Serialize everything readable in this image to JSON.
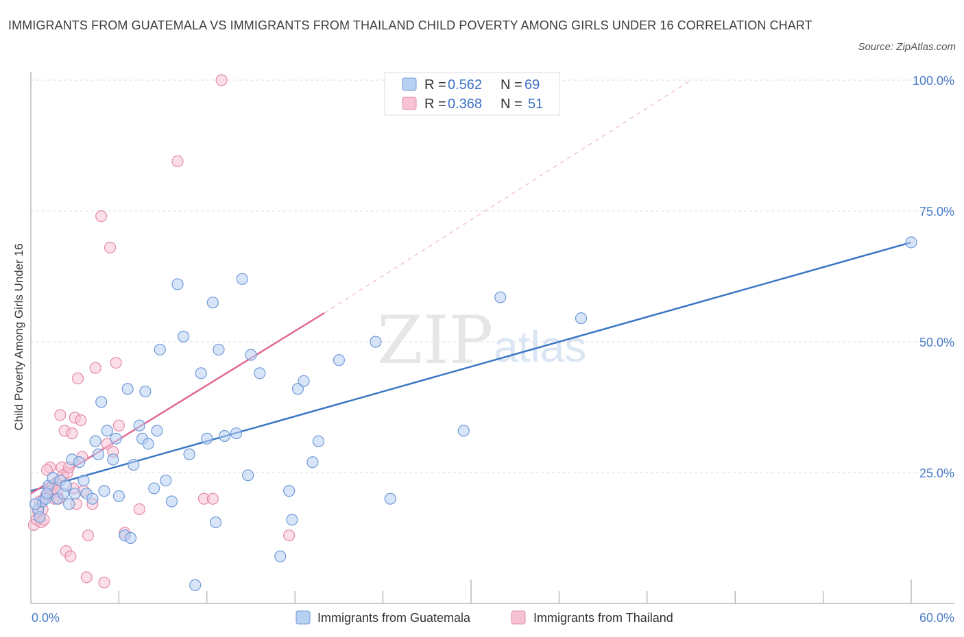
{
  "title": "IMMIGRANTS FROM GUATEMALA VS IMMIGRANTS FROM THAILAND CHILD POVERTY AMONG GIRLS UNDER 16 CORRELATION CHART",
  "source": "Source: ZipAtlas.com",
  "watermark": {
    "zip": "ZIP",
    "atlas": "atlas"
  },
  "colors": {
    "guatemala": "#3a75c4",
    "guatemala_fill": "#b8d0f2",
    "thailand": "#e06a94",
    "thailand_fill": "#f7c3d4",
    "tick_label": "#4a7cc7",
    "grid": "#dddddd"
  },
  "legend": {
    "r_label": "R =",
    "n_label": "N =",
    "guatemala": {
      "r": "0.562",
      "n": "69"
    },
    "thailand": {
      "r": "0.368",
      "n": "51"
    }
  },
  "bottom_legend": {
    "guatemala": "Immigrants from Guatemala",
    "thailand": "Immigrants from Thailand"
  },
  "chart_data": {
    "type": "scatter",
    "title": "IMMIGRANTS FROM GUATEMALA VS IMMIGRANTS FROM THAILAND CHILD POVERTY AMONG GIRLS UNDER 16 CORRELATION CHART",
    "xlabel": "",
    "ylabel": "Child Poverty Among Girls Under 16",
    "xlim": [
      0,
      60
    ],
    "ylim": [
      0,
      100
    ],
    "x_tick_labels": [
      "0.0%",
      "60.0%"
    ],
    "y_tick_labels": [
      "25.0%",
      "50.0%",
      "75.0%",
      "100.0%"
    ],
    "y_ticks": [
      25,
      50,
      75,
      100
    ],
    "grid": true,
    "legend_position": "top-center",
    "series": [
      {
        "name": "Immigrants from Guatemala",
        "points": [
          [
            0.5,
            18.0
          ],
          [
            0.8,
            19.5
          ],
          [
            1.0,
            20.0
          ],
          [
            1.2,
            22.5
          ],
          [
            1.5,
            24.0
          ],
          [
            1.8,
            20.0
          ],
          [
            2.0,
            23.5
          ],
          [
            2.2,
            21.0
          ],
          [
            2.4,
            22.5
          ],
          [
            2.6,
            19.0
          ],
          [
            2.8,
            27.5
          ],
          [
            3.0,
            21.0
          ],
          [
            3.3,
            27.0
          ],
          [
            3.6,
            23.5
          ],
          [
            3.8,
            21.0
          ],
          [
            4.2,
            20.0
          ],
          [
            4.4,
            31.0
          ],
          [
            4.6,
            28.5
          ],
          [
            4.8,
            38.5
          ],
          [
            5.0,
            21.5
          ],
          [
            5.2,
            33.0
          ],
          [
            5.6,
            27.5
          ],
          [
            5.8,
            31.5
          ],
          [
            6.0,
            20.5
          ],
          [
            6.4,
            13.0
          ],
          [
            6.6,
            41.0
          ],
          [
            6.8,
            12.5
          ],
          [
            7.0,
            26.5
          ],
          [
            7.4,
            34.0
          ],
          [
            7.6,
            31.5
          ],
          [
            7.8,
            40.5
          ],
          [
            8.0,
            30.5
          ],
          [
            8.4,
            22.0
          ],
          [
            8.6,
            33.0
          ],
          [
            8.8,
            48.5
          ],
          [
            9.2,
            23.5
          ],
          [
            9.6,
            19.5
          ],
          [
            10.0,
            61.0
          ],
          [
            10.4,
            51.0
          ],
          [
            10.8,
            28.5
          ],
          [
            11.2,
            3.5
          ],
          [
            11.6,
            44.0
          ],
          [
            12.0,
            31.5
          ],
          [
            12.4,
            57.5
          ],
          [
            12.6,
            15.5
          ],
          [
            12.8,
            48.5
          ],
          [
            13.2,
            32.0
          ],
          [
            14.0,
            32.5
          ],
          [
            14.4,
            62.0
          ],
          [
            14.8,
            24.5
          ],
          [
            15.0,
            47.5
          ],
          [
            15.6,
            44.0
          ],
          [
            17.0,
            9.0
          ],
          [
            17.6,
            21.5
          ],
          [
            17.8,
            16.0
          ],
          [
            18.2,
            41.0
          ],
          [
            18.6,
            42.5
          ],
          [
            19.2,
            27.0
          ],
          [
            19.6,
            31.0
          ],
          [
            21.0,
            46.5
          ],
          [
            23.5,
            50.0
          ],
          [
            24.5,
            20.0
          ],
          [
            29.5,
            33.0
          ],
          [
            32.0,
            58.5
          ],
          [
            37.5,
            54.5
          ],
          [
            60.0,
            69.0
          ],
          [
            0.3,
            19.0
          ],
          [
            0.6,
            16.5
          ],
          [
            1.1,
            21.0
          ]
        ],
        "trend": {
          "x": [
            0,
            60
          ],
          "y": [
            21.5,
            69.0
          ]
        }
      },
      {
        "name": "Immigrants from Thailand",
        "points": [
          [
            0.2,
            15.0
          ],
          [
            0.4,
            16.0
          ],
          [
            0.5,
            17.5
          ],
          [
            0.6,
            19.5
          ],
          [
            0.7,
            15.5
          ],
          [
            0.8,
            18.0
          ],
          [
            0.9,
            16.0
          ],
          [
            1.0,
            20.5
          ],
          [
            1.2,
            22.0
          ],
          [
            1.3,
            26.0
          ],
          [
            1.4,
            21.0
          ],
          [
            1.5,
            22.5
          ],
          [
            1.6,
            20.0
          ],
          [
            1.7,
            23.0
          ],
          [
            1.8,
            21.5
          ],
          [
            1.9,
            20.0
          ],
          [
            2.0,
            36.0
          ],
          [
            2.1,
            26.0
          ],
          [
            2.2,
            24.5
          ],
          [
            2.3,
            33.0
          ],
          [
            2.4,
            10.0
          ],
          [
            2.5,
            25.0
          ],
          [
            2.6,
            26.0
          ],
          [
            2.7,
            9.0
          ],
          [
            2.8,
            32.5
          ],
          [
            2.9,
            22.0
          ],
          [
            3.0,
            35.5
          ],
          [
            3.1,
            19.0
          ],
          [
            3.2,
            43.0
          ],
          [
            3.4,
            35.0
          ],
          [
            3.5,
            28.0
          ],
          [
            3.6,
            21.5
          ],
          [
            3.8,
            5.0
          ],
          [
            3.9,
            13.0
          ],
          [
            4.2,
            19.0
          ],
          [
            4.4,
            45.0
          ],
          [
            4.8,
            74.0
          ],
          [
            5.0,
            4.0
          ],
          [
            5.2,
            30.5
          ],
          [
            5.4,
            68.0
          ],
          [
            5.6,
            29.0
          ],
          [
            5.8,
            46.0
          ],
          [
            6.0,
            34.0
          ],
          [
            6.4,
            13.5
          ],
          [
            7.4,
            18.0
          ],
          [
            10.0,
            84.5
          ],
          [
            11.8,
            20.0
          ],
          [
            12.4,
            20.0
          ],
          [
            13.0,
            100.0
          ],
          [
            17.6,
            13.0
          ],
          [
            1.1,
            25.5
          ]
        ],
        "trend": {
          "x": [
            0,
            20
          ],
          "y": [
            21.0,
            55.5
          ]
        },
        "trend_extension": {
          "x": [
            20,
            45
          ],
          "y": [
            55.5,
            100.0
          ]
        }
      }
    ]
  }
}
